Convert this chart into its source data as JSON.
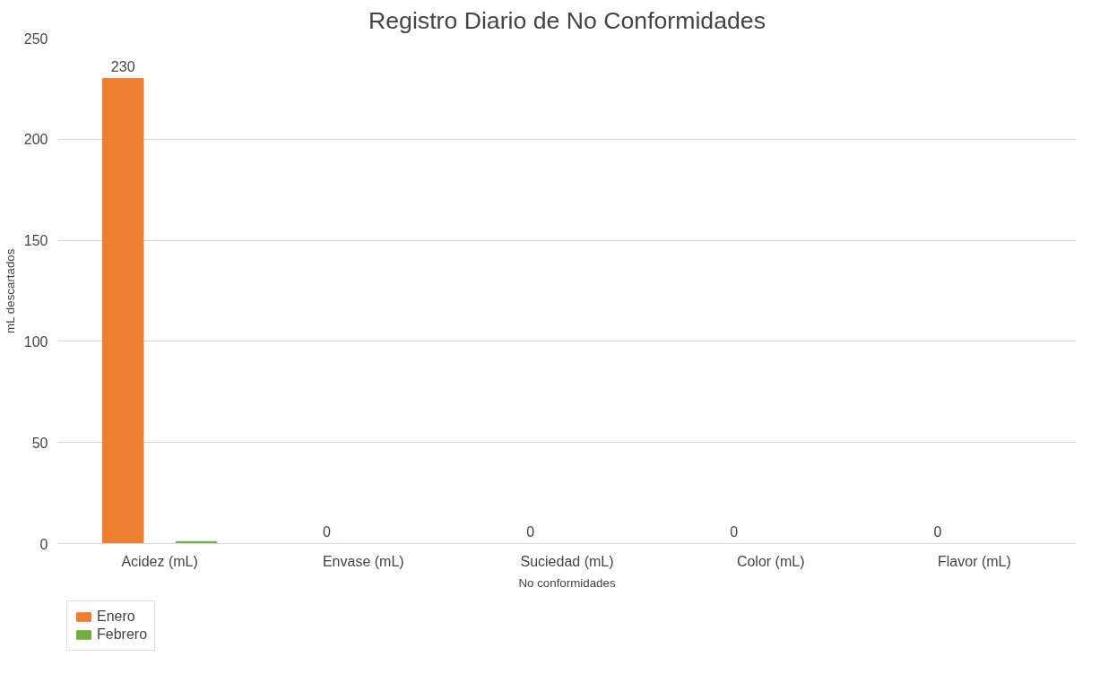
{
  "chart_data": {
    "type": "bar",
    "title": "Registro Diario de No Conformidades",
    "xlabel": "No conformidades",
    "ylabel": "mL descartados",
    "categories": [
      "Acidez (mL)",
      "Envase (mL)",
      "Suciedad (mL)",
      "Color (mL)",
      "Flavor (mL)"
    ],
    "series": [
      {
        "name": "Enero",
        "color": "#ed7d31",
        "values": [
          230,
          0,
          0,
          0,
          0
        ],
        "value_labels": [
          "230",
          "0",
          "0",
          "0",
          "0"
        ]
      },
      {
        "name": "Febrero",
        "color": "#70ad47",
        "values": [
          1,
          0,
          0,
          0,
          0
        ]
      }
    ],
    "ylim": [
      0,
      250
    ],
    "yticks": [
      0,
      50,
      100,
      150,
      200,
      250
    ],
    "grid": "y",
    "legend": "bottom left"
  }
}
